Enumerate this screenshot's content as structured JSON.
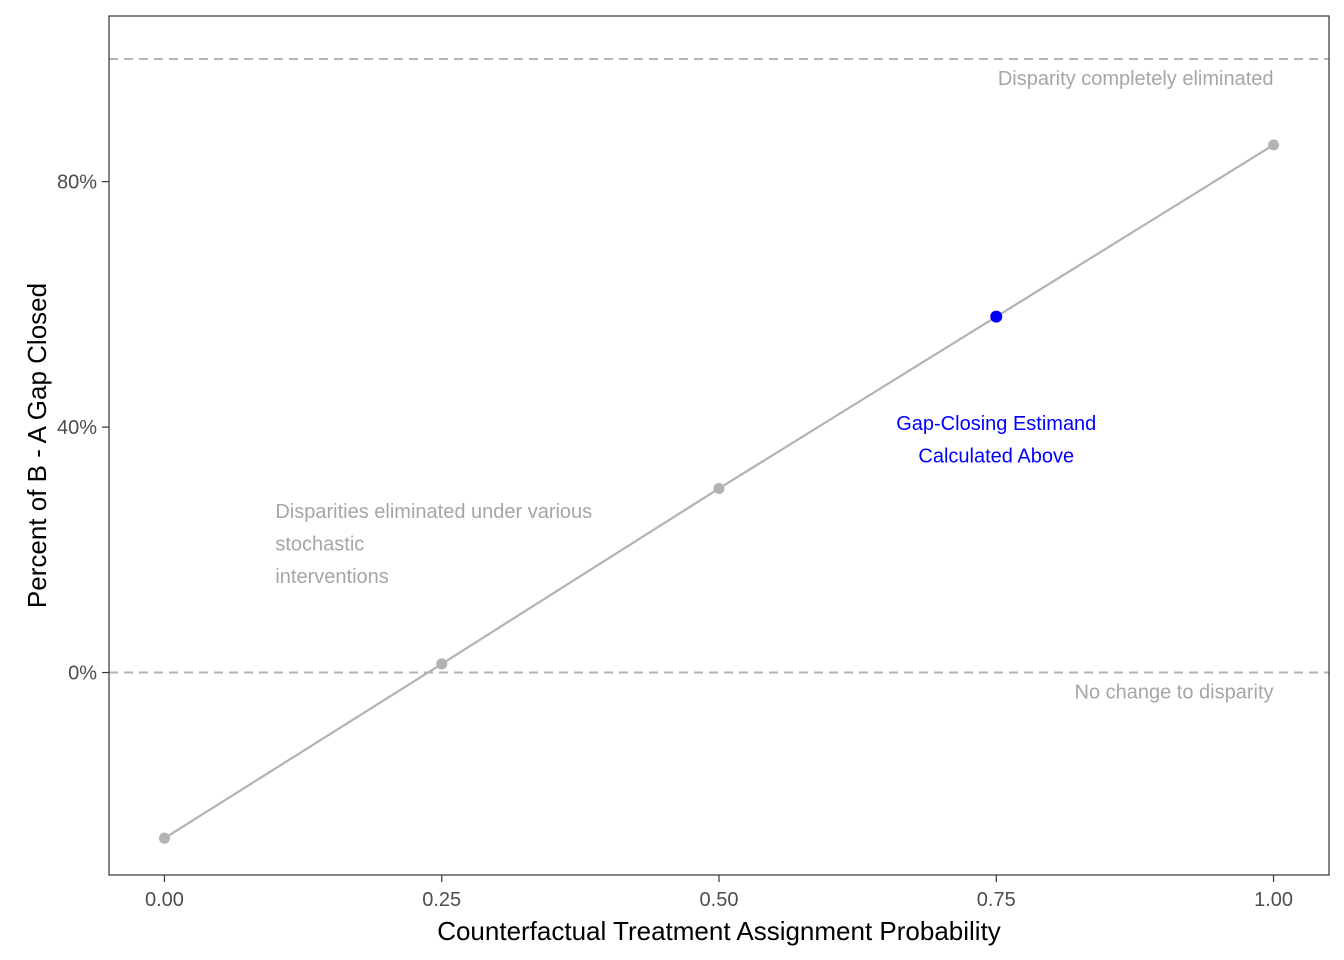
{
  "chart_data": {
    "type": "line",
    "title": "",
    "xlabel": "Counterfactual Treatment Assignment Probability",
    "ylabel": "Percent of B - A Gap Closed",
    "xlim": [
      -0.05,
      1.05
    ],
    "ylim": [
      -33,
      107
    ],
    "x_ticks": [
      {
        "value": 0.0,
        "label": "0.00"
      },
      {
        "value": 0.25,
        "label": "0.25"
      },
      {
        "value": 0.5,
        "label": "0.50"
      },
      {
        "value": 0.75,
        "label": "0.75"
      },
      {
        "value": 1.0,
        "label": "1.00"
      }
    ],
    "y_ticks": [
      {
        "value": 0,
        "label": "0%"
      },
      {
        "value": 40,
        "label": "40%"
      },
      {
        "value": 80,
        "label": "80%"
      }
    ],
    "grid": false,
    "series": [
      {
        "color": "#b3b3b3",
        "x": [
          0.0,
          0.25,
          0.5,
          0.75,
          1.0
        ],
        "y": [
          -27,
          1.4,
          30,
          58,
          86
        ]
      }
    ],
    "highlight_point": {
      "x": 0.75,
      "y": 58,
      "color": "#0000ff"
    },
    "reference_lines": [
      {
        "y": 100,
        "label": "Disparity completely eliminated",
        "color": "#b3b3b3"
      },
      {
        "y": 0,
        "label": "No change to disparity",
        "color": "#b3b3b3"
      }
    ],
    "annotations": [
      {
        "x": 0.1,
        "y": 21,
        "anchor": "start",
        "color": "#b3b3b3",
        "lines": [
          "Disparities eliminated under various",
          "stochastic",
          "interventions"
        ]
      },
      {
        "x": 0.75,
        "y": 38,
        "anchor": "middle",
        "color": "#0000ff",
        "lines": [
          "Gap-Closing Estimand",
          "Calculated Above"
        ]
      }
    ]
  }
}
